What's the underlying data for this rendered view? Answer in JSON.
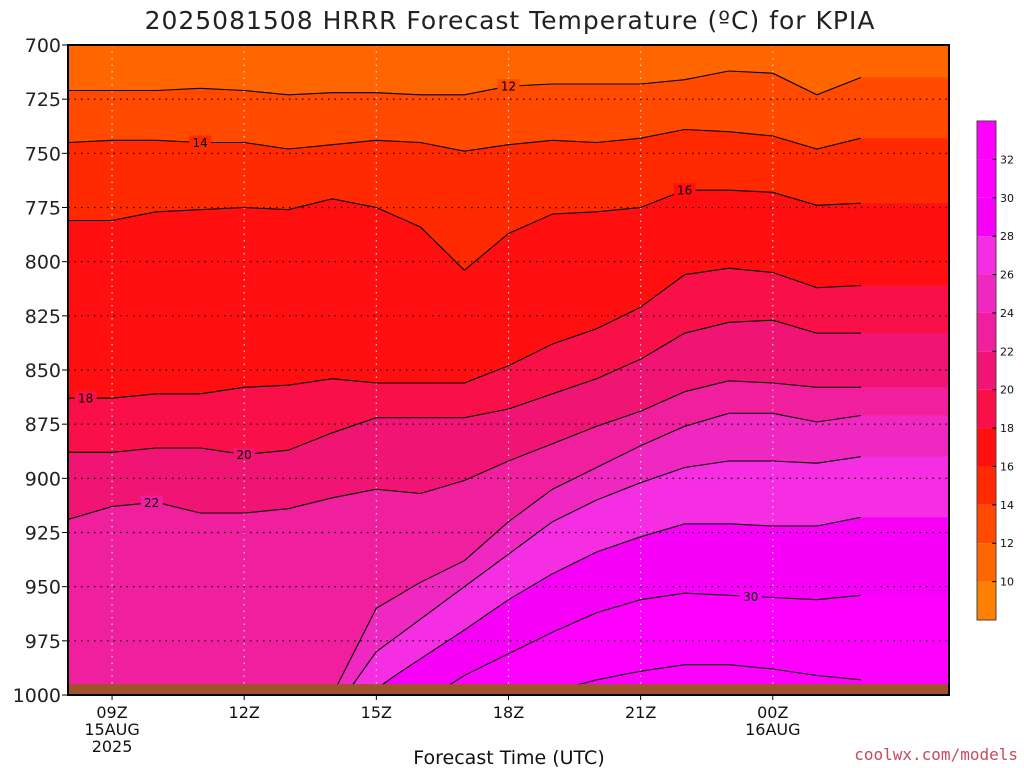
{
  "title": "2025081508 HRRR Forecast Temperature (ºC) for KPIA",
  "credit": "coolwx.com/models",
  "chart_data": {
    "type": "contour",
    "title": "2025081508 HRRR Forecast Temperature (ºC) for KPIA",
    "xlabel": "Forecast Time (UTC)",
    "ylabel": "",
    "x_range_hours": [
      8,
      28
    ],
    "y_range_hpa": [
      700,
      1000
    ],
    "y_scale": "linear, pressure increasing downward",
    "grid": true,
    "yticks": [
      "700",
      "725",
      "750",
      "775",
      "800",
      "825",
      "850",
      "875",
      "900",
      "925",
      "950",
      "975",
      "1000"
    ],
    "yvalues": [
      700,
      725,
      750,
      775,
      800,
      825,
      850,
      875,
      900,
      925,
      950,
      975,
      1000
    ],
    "xticks": [
      {
        "hour": 9,
        "lines": [
          "09Z",
          "15AUG",
          "2025"
        ]
      },
      {
        "hour": 12,
        "lines": [
          "12Z"
        ]
      },
      {
        "hour": 15,
        "lines": [
          "15Z"
        ]
      },
      {
        "hour": 18,
        "lines": [
          "18Z"
        ]
      },
      {
        "hour": 21,
        "lines": [
          "21Z"
        ]
      },
      {
        "hour": 24,
        "lines": [
          "00Z",
          "16AUG"
        ]
      }
    ],
    "colorbar_labels": [
      "32",
      "30",
      "28",
      "26",
      "24",
      "22",
      "20",
      "18",
      "16",
      "14",
      "12",
      "10"
    ],
    "colorbar_values": [
      32,
      30,
      28,
      26,
      24,
      22,
      20,
      18,
      16,
      14,
      12,
      10
    ],
    "levels": [
      8,
      10,
      12,
      14,
      16,
      18,
      20,
      22,
      24,
      26,
      28,
      30,
      32
    ],
    "colors": [
      "#ff9900",
      "#ff8000",
      "#ff6600",
      "#ff4a00",
      "#ff2a00",
      "#ff0f0f",
      "#fa1048",
      "#f01575",
      "#f01f9e",
      "#f028c2",
      "#f52ee3",
      "#f700f7",
      "#ff00ff",
      "#ff00ff"
    ],
    "ground_color": "#a0522d",
    "contours": [
      {
        "value": 12,
        "label": "12",
        "label_hour": 18,
        "points": [
          [
            8,
            721
          ],
          [
            9,
            721
          ],
          [
            10,
            721
          ],
          [
            11,
            720
          ],
          [
            12,
            721
          ],
          [
            13,
            723
          ],
          [
            14,
            722
          ],
          [
            15,
            722
          ],
          [
            16,
            723
          ],
          [
            17,
            723
          ],
          [
            18,
            719
          ],
          [
            19,
            718
          ],
          [
            20,
            718
          ],
          [
            21,
            718
          ],
          [
            22,
            716
          ],
          [
            23,
            712
          ],
          [
            24,
            713
          ],
          [
            25,
            723
          ],
          [
            26,
            715
          ]
        ]
      },
      {
        "value": 14,
        "label": "14",
        "label_hour": 11,
        "points": [
          [
            8,
            745
          ],
          [
            9,
            744
          ],
          [
            10,
            744
          ],
          [
            11,
            745
          ],
          [
            12,
            745
          ],
          [
            13,
            748
          ],
          [
            14,
            746
          ],
          [
            15,
            744
          ],
          [
            16,
            745
          ],
          [
            17,
            749
          ],
          [
            18,
            746
          ],
          [
            19,
            744
          ],
          [
            20,
            745
          ],
          [
            21,
            743
          ],
          [
            22,
            739
          ],
          [
            23,
            740
          ],
          [
            24,
            742
          ],
          [
            25,
            748
          ],
          [
            26,
            743
          ]
        ]
      },
      {
        "value": 16,
        "label": "16",
        "label_hour": 22,
        "points": [
          [
            8,
            781
          ],
          [
            9,
            781
          ],
          [
            10,
            777
          ],
          [
            11,
            776
          ],
          [
            12,
            775
          ],
          [
            13,
            776
          ],
          [
            14,
            771
          ],
          [
            15,
            775
          ],
          [
            16,
            784
          ],
          [
            17,
            804
          ],
          [
            18,
            787
          ],
          [
            19,
            778
          ],
          [
            20,
            777
          ],
          [
            21,
            775
          ],
          [
            22,
            767
          ],
          [
            23,
            767
          ],
          [
            24,
            768
          ],
          [
            25,
            774
          ],
          [
            26,
            773
          ]
        ]
      },
      {
        "value": 18,
        "label": "18",
        "label_hour": 8.4,
        "points": [
          [
            8,
            863
          ],
          [
            9,
            863
          ],
          [
            10,
            861
          ],
          [
            11,
            861
          ],
          [
            12,
            858
          ],
          [
            13,
            857
          ],
          [
            14,
            854
          ],
          [
            15,
            856
          ],
          [
            16,
            856
          ],
          [
            17,
            856
          ],
          [
            18,
            848
          ],
          [
            19,
            838
          ],
          [
            20,
            831
          ],
          [
            21,
            821
          ],
          [
            22,
            806
          ],
          [
            23,
            803
          ],
          [
            24,
            805
          ],
          [
            25,
            812
          ],
          [
            26,
            811
          ]
        ]
      },
      {
        "value": 20,
        "label": "20",
        "label_hour": 12,
        "points": [
          [
            8,
            888
          ],
          [
            9,
            888
          ],
          [
            10,
            886
          ],
          [
            11,
            886
          ],
          [
            12,
            889
          ],
          [
            13,
            887
          ],
          [
            14,
            879
          ],
          [
            15,
            872
          ],
          [
            16,
            872
          ],
          [
            17,
            872
          ],
          [
            18,
            868
          ],
          [
            19,
            861
          ],
          [
            20,
            854
          ],
          [
            21,
            845
          ],
          [
            22,
            833
          ],
          [
            23,
            828
          ],
          [
            24,
            827
          ],
          [
            25,
            833
          ],
          [
            26,
            833
          ]
        ]
      },
      {
        "value": 22,
        "label": "22",
        "label_hour": 9.9,
        "points": [
          [
            8,
            919
          ],
          [
            9,
            913
          ],
          [
            10,
            911
          ],
          [
            11,
            916
          ],
          [
            12,
            916
          ],
          [
            13,
            914
          ],
          [
            14,
            909
          ],
          [
            15,
            905
          ],
          [
            16,
            907
          ],
          [
            17,
            901
          ],
          [
            18,
            892
          ],
          [
            19,
            884
          ],
          [
            20,
            876
          ],
          [
            21,
            869
          ],
          [
            22,
            860
          ],
          [
            23,
            855
          ],
          [
            24,
            856
          ],
          [
            25,
            858
          ],
          [
            26,
            858
          ]
        ]
      },
      {
        "value": 24,
        "label": "",
        "label_hour": 0,
        "points": [
          [
            8,
            1000
          ],
          [
            14,
            1000
          ],
          [
            15,
            960
          ],
          [
            16,
            948
          ],
          [
            17,
            938
          ],
          [
            18,
            920
          ],
          [
            19,
            905
          ],
          [
            20,
            895
          ],
          [
            21,
            885
          ],
          [
            22,
            876
          ],
          [
            23,
            870
          ],
          [
            24,
            870
          ],
          [
            25,
            874
          ],
          [
            26,
            871
          ]
        ]
      },
      {
        "value": 26,
        "label": "",
        "label_hour": 0,
        "points": [
          [
            14.3,
            1000
          ],
          [
            15,
            980
          ],
          [
            16,
            965
          ],
          [
            17,
            950
          ],
          [
            18,
            935
          ],
          [
            19,
            920
          ],
          [
            20,
            910
          ],
          [
            21,
            902
          ],
          [
            22,
            895
          ],
          [
            23,
            892
          ],
          [
            24,
            892
          ],
          [
            25,
            893
          ],
          [
            26,
            890
          ]
        ]
      },
      {
        "value": 28,
        "label": "",
        "label_hour": 0,
        "points": [
          [
            14.8,
            1000
          ],
          [
            15.5,
            990
          ],
          [
            17,
            970
          ],
          [
            18,
            956
          ],
          [
            19,
            944
          ],
          [
            20,
            934
          ],
          [
            21,
            927
          ],
          [
            22,
            921
          ],
          [
            23,
            921
          ],
          [
            24,
            922
          ],
          [
            25,
            922
          ],
          [
            26,
            918
          ]
        ]
      },
      {
        "value": 30,
        "label": "30",
        "label_hour": 23.5,
        "points": [
          [
            16.3,
            1000
          ],
          [
            17,
            991
          ],
          [
            18,
            981
          ],
          [
            19,
            971
          ],
          [
            20,
            962
          ],
          [
            21,
            956
          ],
          [
            22,
            953
          ],
          [
            23,
            954
          ],
          [
            24,
            955
          ],
          [
            25,
            956
          ],
          [
            26,
            954
          ]
        ]
      },
      {
        "value": 32,
        "label": "",
        "label_hour": 0,
        "points": [
          [
            18.7,
            1000
          ],
          [
            20,
            993
          ],
          [
            21,
            989
          ],
          [
            22,
            986
          ],
          [
            23,
            986
          ],
          [
            24,
            988
          ],
          [
            25,
            991
          ],
          [
            26,
            993
          ]
        ]
      }
    ]
  }
}
